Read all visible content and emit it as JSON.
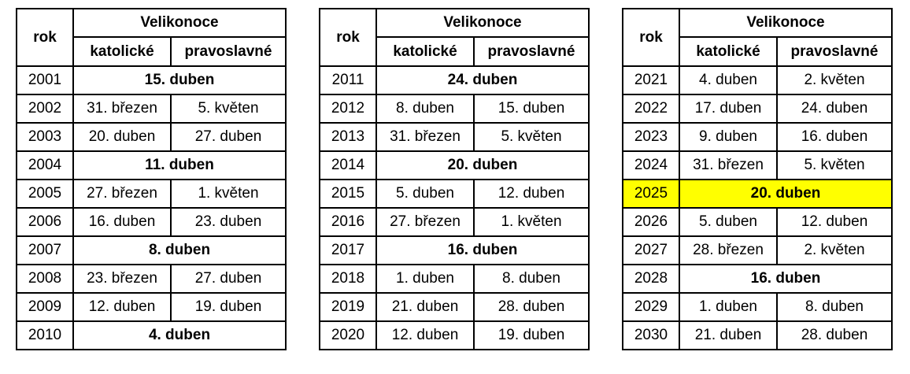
{
  "headers": {
    "year": "rok",
    "easter": "Velikonoce",
    "catholic": "katolické",
    "orthodox": "pravoslavné"
  },
  "highlight_color": "#ffff00",
  "tables": [
    {
      "rows": [
        {
          "year": "2001",
          "common": "15. duben"
        },
        {
          "year": "2002",
          "catholic": "31. březen",
          "orthodox": "5. květen"
        },
        {
          "year": "2003",
          "catholic": "20. duben",
          "orthodox": "27. duben"
        },
        {
          "year": "2004",
          "common": "11. duben"
        },
        {
          "year": "2005",
          "catholic": "27. březen",
          "orthodox": "1. květen"
        },
        {
          "year": "2006",
          "catholic": "16. duben",
          "orthodox": "23. duben"
        },
        {
          "year": "2007",
          "common": "8. duben"
        },
        {
          "year": "2008",
          "catholic": "23. březen",
          "orthodox": "27. duben"
        },
        {
          "year": "2009",
          "catholic": "12. duben",
          "orthodox": "19. duben"
        },
        {
          "year": "2010",
          "common": "4. duben"
        }
      ]
    },
    {
      "rows": [
        {
          "year": "2011",
          "common": "24. duben"
        },
        {
          "year": "2012",
          "catholic": "8. duben",
          "orthodox": "15. duben"
        },
        {
          "year": "2013",
          "catholic": "31. březen",
          "orthodox": "5. květen"
        },
        {
          "year": "2014",
          "common": "20. duben"
        },
        {
          "year": "2015",
          "catholic": "5. duben",
          "orthodox": "12. duben"
        },
        {
          "year": "2016",
          "catholic": "27. březen",
          "orthodox": "1. květen"
        },
        {
          "year": "2017",
          "common": "16. duben"
        },
        {
          "year": "2018",
          "catholic": "1. duben",
          "orthodox": "8. duben"
        },
        {
          "year": "2019",
          "catholic": "21. duben",
          "orthodox": "28. duben"
        },
        {
          "year": "2020",
          "catholic": "12. duben",
          "orthodox": "19. duben"
        }
      ]
    },
    {
      "rows": [
        {
          "year": "2021",
          "catholic": "4. duben",
          "orthodox": "2. květen"
        },
        {
          "year": "2022",
          "catholic": "17. duben",
          "orthodox": "24. duben"
        },
        {
          "year": "2023",
          "catholic": "9. duben",
          "orthodox": "16. duben"
        },
        {
          "year": "2024",
          "catholic": "31. březen",
          "orthodox": "5. květen"
        },
        {
          "year": "2025",
          "common": "20. duben",
          "highlight": true
        },
        {
          "year": "2026",
          "catholic": "5. duben",
          "orthodox": "12. duben"
        },
        {
          "year": "2027",
          "catholic": "28. březen",
          "orthodox": "2. květen"
        },
        {
          "year": "2028",
          "common": "16. duben"
        },
        {
          "year": "2029",
          "catholic": "1. duben",
          "orthodox": "8. duben"
        },
        {
          "year": "2030",
          "catholic": "21. duben",
          "orthodox": "28. duben"
        }
      ]
    }
  ]
}
